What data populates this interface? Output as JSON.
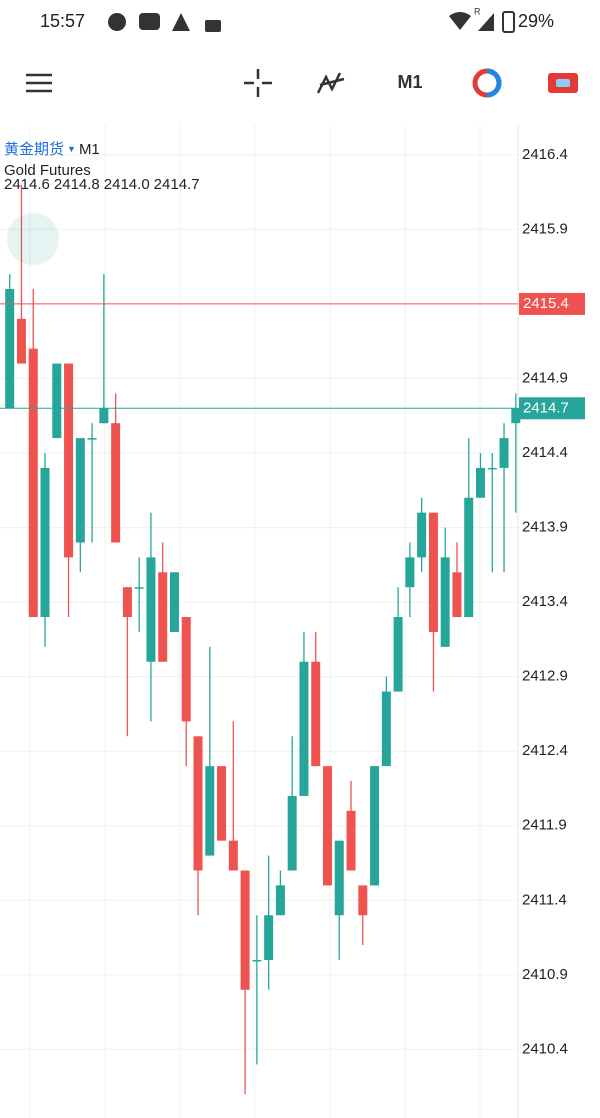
{
  "status_bar": {
    "time": "15:57",
    "network_badge": "R",
    "battery": "29%"
  },
  "toolbar": {
    "timeframe": "M1"
  },
  "chart_data": {
    "type": "candlestick",
    "symbol": "黄金期货",
    "timeframe": "M1",
    "name": "Gold Futures",
    "ohlc": [
      2414.6,
      2414.8,
      {
        "value": 2414.0,
        "label": "2414.0"
      },
      2414.7
    ],
    "up_color": "#26a69a",
    "down_color": "#ef5350",
    "ylim": [
      2409.94,
      2416.6
    ],
    "yticks": [
      2416.4,
      2415.9,
      2414.9,
      2414.4,
      2413.9,
      2413.4,
      2412.9,
      2412.4,
      2411.9,
      2411.4,
      2410.9,
      2410.4
    ],
    "grid": true,
    "price_lines": [
      {
        "value": 2415.4,
        "color": "#ef5350"
      },
      {
        "value": 2414.7,
        "color": "#26a69a"
      }
    ],
    "open": [
      2414.7,
      2415.3,
      2415.1,
      2413.3,
      2414.5,
      2415.0,
      2413.8,
      2414.5,
      2414.6,
      2414.6,
      2413.5,
      2413.5,
      2413.0,
      2413.6,
      2413.2,
      2413.3,
      2412.5,
      2411.7,
      2412.3,
      2411.8,
      2411.6,
      2411.0,
      2411.0,
      2411.3,
      2411.6,
      2412.1,
      2413.0,
      2412.3,
      2411.3,
      2412.0,
      2411.5,
      2411.5,
      2412.3,
      2412.8,
      2413.5,
      2413.7,
      2414.0,
      2413.1,
      2413.6,
      2413.3,
      2414.1,
      2414.3,
      2414.3,
      2414.6
    ],
    "high": [
      2415.6,
      2416.2,
      2415.5,
      2414.4,
      2415.0,
      2415.0,
      2414.5,
      2414.6,
      2415.6,
      2414.8,
      2413.5,
      2413.7,
      2414.0,
      2413.8,
      2413.6,
      2413.3,
      2412.5,
      2413.1,
      2412.3,
      2412.6,
      2411.6,
      2411.3,
      2411.7,
      2411.6,
      2412.5,
      2413.2,
      2413.2,
      2412.3,
      2411.8,
      2412.2,
      2411.5,
      2412.3,
      2412.9,
      2413.5,
      2413.8,
      2414.1,
      2414.0,
      2413.9,
      2413.8,
      2414.5,
      2414.4,
      2414.4,
      2414.6,
      2414.8
    ],
    "low": [
      2414.7,
      2415.0,
      2413.3,
      2413.1,
      2414.5,
      2413.3,
      2413.6,
      2413.8,
      2414.6,
      2413.8,
      2412.5,
      2413.2,
      2412.6,
      2413.0,
      2413.2,
      2412.3,
      2411.3,
      2411.7,
      2411.8,
      2411.6,
      2410.1,
      2410.3,
      2410.8,
      2411.3,
      2411.6,
      2412.1,
      2412.3,
      2411.5,
      2411.0,
      2411.6,
      2411.1,
      2411.5,
      2412.3,
      2412.8,
      2413.3,
      2413.6,
      2412.8,
      2413.1,
      2413.3,
      2413.3,
      2414.1,
      2413.6,
      2413.6,
      2414.0
    ],
    "close": [
      2415.5,
      2415.0,
      2413.3,
      2414.3,
      2415.0,
      2413.7,
      2414.5,
      2414.5,
      2414.7,
      2413.8,
      2413.3,
      2413.5,
      2413.7,
      2413.0,
      2413.6,
      2412.6,
      2411.6,
      2412.3,
      2411.8,
      2411.6,
      2410.8,
      2411.0,
      2411.3,
      2411.5,
      2412.1,
      2413.0,
      2412.3,
      2411.5,
      2411.8,
      2411.6,
      2411.3,
      2412.3,
      2412.8,
      2413.3,
      2413.7,
      2414.0,
      2413.2,
      2413.7,
      2413.3,
      2414.1,
      2414.3,
      2414.3,
      2414.5,
      2414.7
    ]
  }
}
